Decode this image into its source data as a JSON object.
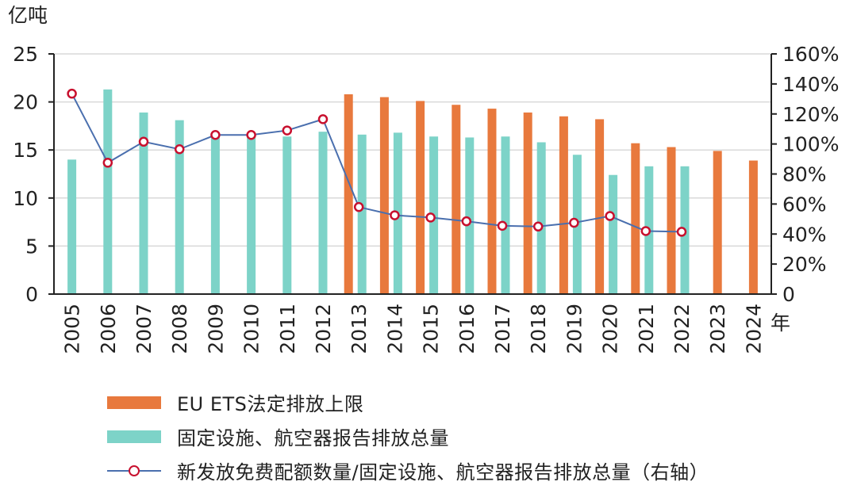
{
  "chart_data": {
    "type": "bar",
    "title": "",
    "y_left_unit": "亿吨",
    "y_right_unit": "",
    "x_unit": "年",
    "ylim_left": [
      0,
      25
    ],
    "ylim_right": [
      0,
      160
    ],
    "y_left_ticks": [
      "0",
      "5",
      "10",
      "15",
      "20",
      "25"
    ],
    "y_right_ticks": [
      "0",
      "20%",
      "40%",
      "60%",
      "80%",
      "100%",
      "120%",
      "140%",
      "160%"
    ],
    "categories": [
      "2005",
      "2006",
      "2007",
      "2008",
      "2009",
      "2010",
      "2011",
      "2012",
      "2013",
      "2014",
      "2015",
      "2016",
      "2017",
      "2018",
      "2019",
      "2020",
      "2021",
      "2022",
      "2023",
      "2024"
    ],
    "grid": true,
    "legend_position": "bottom",
    "series": [
      {
        "name": "EU ETS法定排放上限",
        "type": "bar",
        "axis": "left",
        "color": "#e8793d",
        "values": [
          null,
          null,
          null,
          null,
          null,
          null,
          null,
          null,
          20.8,
          20.5,
          20.1,
          19.7,
          19.3,
          18.9,
          18.5,
          18.2,
          15.7,
          15.3,
          14.9,
          13.9
        ]
      },
      {
        "name": "固定设施、航空器报告排放总量",
        "type": "bar",
        "axis": "left",
        "color": "#7dd3c8",
        "values": [
          14.0,
          21.3,
          18.9,
          18.1,
          16.7,
          16.7,
          16.4,
          16.9,
          16.6,
          16.8,
          16.4,
          16.3,
          16.4,
          15.8,
          14.5,
          12.4,
          13.3,
          13.3,
          null,
          null
        ]
      },
      {
        "name": "新发放免费配额数量/固定设施、航空器报告排放总量（右轴）",
        "type": "line",
        "axis": "right",
        "color": "#4a6fae",
        "marker_color": "#c8102e",
        "values": [
          133.5,
          87.5,
          101.5,
          96.5,
          106,
          106,
          109,
          116.5,
          58,
          52.5,
          51,
          48.5,
          45.5,
          45,
          47.5,
          52,
          42,
          41.5,
          null,
          null
        ]
      }
    ]
  }
}
